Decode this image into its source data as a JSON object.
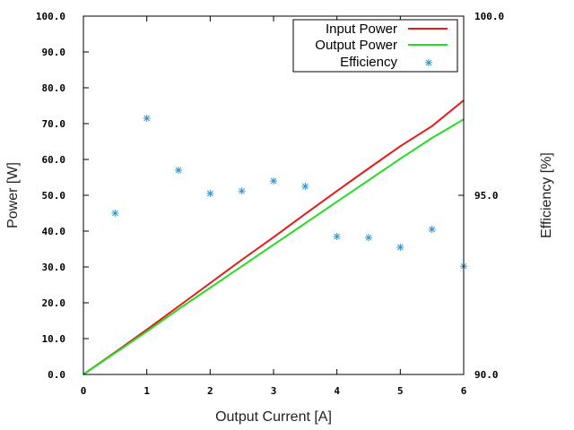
{
  "chart_data": {
    "type": "line",
    "xlabel": "Output Current [A]",
    "ylabel": "Power [W]",
    "y2label": "Efficiency [%]",
    "xlim": [
      0,
      6
    ],
    "ylim": [
      0,
      100
    ],
    "y2lim": [
      90,
      100
    ],
    "xticks": [
      "0",
      "1",
      "2",
      "3",
      "4",
      "5",
      "6"
    ],
    "yticks": [
      "0.0",
      "10.0",
      "20.0",
      "30.0",
      "40.0",
      "50.0",
      "60.0",
      "70.0",
      "80.0",
      "90.0",
      "100.0"
    ],
    "y2ticks": [
      "90.0",
      "95.0",
      "100.0"
    ],
    "legend_position": "top-right",
    "series": [
      {
        "name": "Input Power",
        "color": "#e41a1c",
        "axis": "y",
        "style": "line",
        "x": [
          0,
          0.5,
          1,
          1.5,
          2,
          2.5,
          3,
          3.5,
          4,
          4.5,
          5,
          5.5,
          6
        ],
        "y": [
          0,
          6.2,
          12.5,
          19,
          25.5,
          32,
          38.3,
          44.8,
          51.2,
          57.5,
          63.7,
          69.3,
          76.5
        ]
      },
      {
        "name": "Output Power",
        "color": "#22dd22",
        "axis": "y",
        "style": "line",
        "x": [
          0,
          0.5,
          1,
          1.5,
          2,
          2.5,
          3,
          3.5,
          4,
          4.5,
          5,
          5.5,
          6
        ],
        "y": [
          0,
          6.0,
          12.0,
          18.2,
          24.2,
          30.2,
          36.2,
          42.2,
          48.2,
          54.2,
          60.2,
          66.0,
          71.2
        ]
      },
      {
        "name": "Efficiency",
        "color": "#3399cc",
        "axis": "y2",
        "style": "points",
        "x": [
          0.5,
          1,
          1.5,
          2,
          2.5,
          3,
          3.5,
          4,
          4.5,
          5,
          5.5,
          6
        ],
        "y": [
          94.5,
          97.15,
          95.7,
          95.05,
          95.12,
          95.4,
          95.25,
          93.85,
          93.82,
          93.55,
          94.05,
          93.02
        ]
      }
    ]
  }
}
